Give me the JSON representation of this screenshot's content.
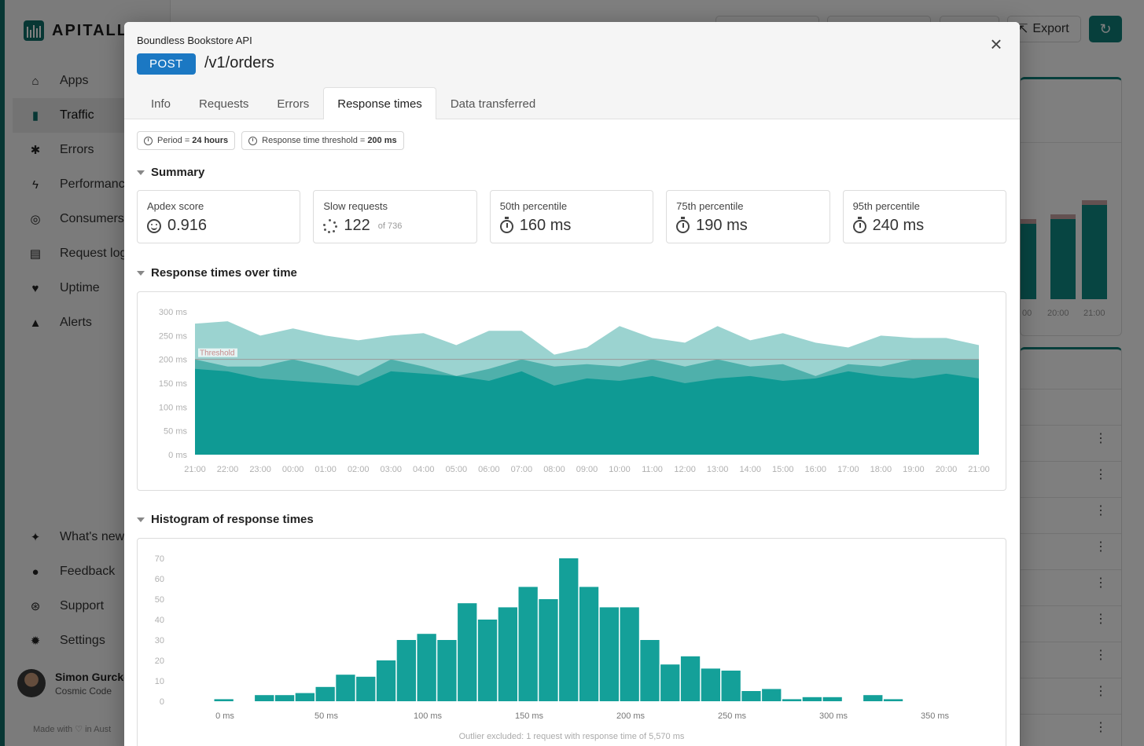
{
  "app": {
    "logo": "APITALLY",
    "nav": [
      {
        "label": "Apps",
        "icon": "home-icon"
      },
      {
        "label": "Traffic",
        "icon": "bar-chart-icon",
        "active": true
      },
      {
        "label": "Errors",
        "icon": "bug-icon"
      },
      {
        "label": "Performance",
        "icon": "bolt-icon"
      },
      {
        "label": "Consumers",
        "icon": "fingerprint-icon"
      },
      {
        "label": "Request log",
        "icon": "scroll-icon"
      },
      {
        "label": "Uptime",
        "icon": "heart-pulse-icon"
      },
      {
        "label": "Alerts",
        "icon": "bell-icon"
      }
    ],
    "bottom_nav": [
      {
        "label": "What's new",
        "icon": "sparkle-icon"
      },
      {
        "label": "Feedback",
        "icon": "chat-icon"
      },
      {
        "label": "Support",
        "icon": "lifebuoy-icon"
      },
      {
        "label": "Settings",
        "icon": "gear-icon"
      }
    ],
    "user": {
      "name": "Simon Gurcke",
      "org": "Cosmic Code"
    },
    "made_with": "Made with ♡ in Aust",
    "export_label": "Export",
    "bg_chart_ticks": [
      "00",
      "20:00",
      "21:00"
    ]
  },
  "modal": {
    "app_name": "Boundless Bookstore API",
    "method": "POST",
    "path": "/v1/orders",
    "tabs": [
      "Info",
      "Requests",
      "Errors",
      "Response times",
      "Data transferred"
    ],
    "active_tab": "Response times",
    "chips": {
      "period_label": "Period = ",
      "period_value": "24 hours",
      "threshold_label": "Response time threshold = ",
      "threshold_value": "200 ms"
    },
    "summary": {
      "title": "Summary",
      "cards": [
        {
          "label": "Apdex score",
          "value": "0.916",
          "icon": "smile-icon"
        },
        {
          "label": "Slow requests",
          "value": "122",
          "sub": "of 736",
          "icon": "spinner-icon"
        },
        {
          "label": "50th percentile",
          "value": "160 ms",
          "icon": "stopwatch-icon"
        },
        {
          "label": "75th percentile",
          "value": "190 ms",
          "icon": "stopwatch-icon"
        },
        {
          "label": "95th percentile",
          "value": "240 ms",
          "icon": "stopwatch-icon"
        }
      ]
    },
    "over_time_title": "Response times over time",
    "histogram_title": "Histogram of response times",
    "histogram_footnote": "Outlier excluded: 1 request with response time of 5,570 ms"
  },
  "chart_data": [
    {
      "type": "area",
      "x": [
        "21:00",
        "22:00",
        "23:00",
        "00:00",
        "01:00",
        "02:00",
        "03:00",
        "04:00",
        "05:00",
        "06:00",
        "07:00",
        "08:00",
        "09:00",
        "10:00",
        "11:00",
        "12:00",
        "13:00",
        "14:00",
        "15:00",
        "16:00",
        "17:00",
        "18:00",
        "19:00",
        "20:00",
        "21:00"
      ],
      "series": [
        {
          "values": [
            275,
            280,
            250,
            265,
            250,
            240,
            250,
            255,
            230,
            260,
            260,
            210,
            225,
            270,
            245,
            235,
            270,
            240,
            255,
            235,
            225,
            250,
            245,
            245,
            230
          ],
          "color": "#9bd3d0"
        },
        {
          "values": [
            200,
            185,
            185,
            200,
            185,
            165,
            200,
            185,
            165,
            180,
            200,
            185,
            190,
            185,
            200,
            185,
            200,
            185,
            190,
            165,
            190,
            185,
            200,
            200,
            200
          ],
          "color": "#4fb0ab"
        },
        {
          "values": [
            180,
            175,
            160,
            155,
            150,
            145,
            175,
            170,
            165,
            155,
            175,
            145,
            160,
            155,
            165,
            150,
            160,
            165,
            155,
            160,
            175,
            165,
            160,
            170,
            160
          ],
          "color": "#0f9a94"
        }
      ],
      "threshold": 200,
      "threshold_label": "Threshold",
      "y_ticks": [
        "0 ms",
        "50 ms",
        "100 ms",
        "150 ms",
        "200 ms",
        "250 ms",
        "300 ms"
      ],
      "ylim": [
        0,
        300
      ]
    },
    {
      "type": "bar",
      "bin_width_ms": 10,
      "bin_start_ms": 0,
      "values": [
        1,
        0,
        3,
        3,
        4,
        7,
        13,
        12,
        20,
        30,
        33,
        30,
        48,
        40,
        46,
        56,
        50,
        70,
        56,
        46,
        46,
        30,
        18,
        22,
        16,
        15,
        5,
        6,
        1,
        2,
        2,
        0,
        3,
        1
      ],
      "color": "#14a099",
      "x_ticks": [
        "0 ms",
        "50 ms",
        "100 ms",
        "150 ms",
        "200 ms",
        "250 ms",
        "300 ms",
        "350 ms"
      ],
      "y_ticks": [
        "0",
        "10",
        "20",
        "30",
        "40",
        "50",
        "60",
        "70"
      ],
      "ylim": [
        0,
        70
      ]
    }
  ]
}
